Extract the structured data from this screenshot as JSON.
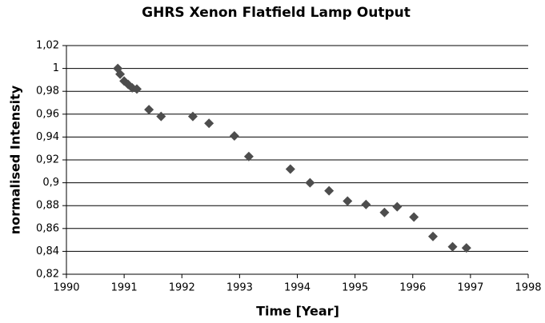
{
  "chart_data": {
    "type": "scatter",
    "title": "GHRS Xenon Flatfield Lamp Output",
    "x_label": "Time [Year]",
    "y_label": "normalised Intensity",
    "x": [
      1990.89,
      1990.93,
      1991.0,
      1991.07,
      1991.14,
      1991.22,
      1991.43,
      1991.64,
      1992.19,
      1992.47,
      1992.91,
      1993.16,
      1993.88,
      1994.22,
      1994.55,
      1994.87,
      1995.19,
      1995.51,
      1995.73,
      1996.02,
      1996.35,
      1996.69,
      1996.93
    ],
    "values": [
      1.0,
      0.995,
      0.989,
      0.986,
      0.983,
      0.982,
      0.964,
      0.958,
      0.958,
      0.952,
      0.941,
      0.923,
      0.912,
      0.9,
      0.893,
      0.884,
      0.881,
      0.874,
      0.879,
      0.87,
      0.853,
      0.844,
      0.843
    ],
    "color": "#4d4d4d",
    "xlim": [
      1990,
      1998
    ],
    "xticks": [
      1990,
      1991,
      1992,
      1993,
      1994,
      1995,
      1996,
      1997,
      1998
    ],
    "ylim": [
      0.82,
      1.02
    ],
    "yticks": [
      {
        "value": 0.82,
        "label": "0,82"
      },
      {
        "value": 0.84,
        "label": "0,84"
      },
      {
        "value": 0.86,
        "label": "0,86"
      },
      {
        "value": 0.88,
        "label": "0,88"
      },
      {
        "value": 0.9,
        "label": "0,9"
      },
      {
        "value": 0.92,
        "label": "0,92"
      },
      {
        "value": 0.94,
        "label": "0,94"
      },
      {
        "value": 0.96,
        "label": "0,96"
      },
      {
        "value": 0.98,
        "label": "0,98"
      },
      1,
      {
        "value": 1.02,
        "label": "1,02"
      }
    ],
    "grid": true
  }
}
